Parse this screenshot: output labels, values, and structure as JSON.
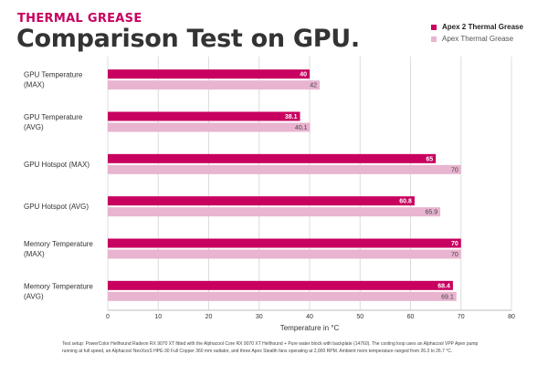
{
  "header": {
    "kicker": "THERMAL GREASE",
    "title": "Comparison Test on GPU."
  },
  "colors": {
    "primary": "#c8005f",
    "secondary": "#e8b4cf",
    "grid": "#dcdcdc",
    "text": "#333333"
  },
  "footnote": "Test setup: PowerColor Hellhound Radeon RX 9070 XT fitted with the Alphacool Core RX 9070 XT Hellhound + Pure water block with backplate (14760). The cooling loop uses an Alphacool VPP Apex pump running at full speed, an Alphacool NexXxoS HPE-30 Full Copper 360 mm radiator, and three Apex Stealth fans operating at 2,000 RPM. Ambient room temperature ranged from 26.3 to 26.7 °C.",
  "chart_data": {
    "type": "bar",
    "orientation": "horizontal",
    "categories": [
      [
        "GPU Temperature",
        "(MAX)"
      ],
      [
        "GPU Temperature",
        "(AVG)"
      ],
      [
        "GPU Hotspot (MAX)"
      ],
      [
        "GPU Hotspot (AVG)"
      ],
      [
        "Memory Temperature",
        "(MAX)"
      ],
      [
        "Memory Temperature",
        "(AVG)"
      ]
    ],
    "series": [
      {
        "name": "Apex 2 Thermal Grease",
        "values": [
          40,
          38.1,
          65,
          60.8,
          70,
          68.4
        ],
        "labels": [
          "40",
          "38.1",
          "65",
          "60.8",
          "70",
          "68.4"
        ]
      },
      {
        "name": "Apex Thermal Grease",
        "values": [
          42,
          40.1,
          70,
          65.9,
          70,
          69.1
        ],
        "labels": [
          "42",
          "40.1",
          "70",
          "65.9",
          "70",
          "69.1"
        ]
      }
    ],
    "xlabel": "Temperature in °C",
    "xlim": [
      0,
      80
    ],
    "xticks": [
      0,
      10,
      20,
      30,
      40,
      50,
      60,
      70,
      80
    ],
    "grid": true,
    "legend": "top-right"
  }
}
